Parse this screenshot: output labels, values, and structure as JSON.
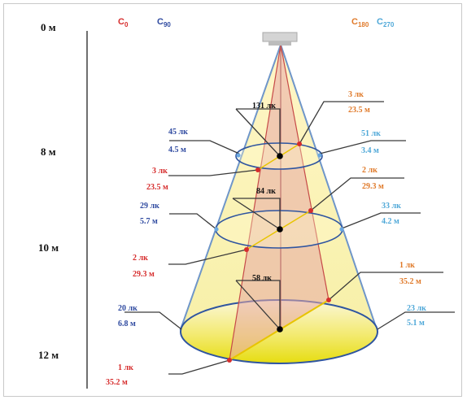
{
  "depths": [
    "0 м",
    "8 м",
    "10 м",
    "12 м"
  ],
  "planes": {
    "c0": {
      "letter": "C",
      "angle": "0",
      "color": "#d62d2d"
    },
    "c90": {
      "letter": "C",
      "angle": "90",
      "color": "#2f4aa0"
    },
    "c180": {
      "letter": "C",
      "angle": "180",
      "color": "#e07a2a"
    },
    "c270": {
      "letter": "C",
      "angle": "270",
      "color": "#4fa8d8"
    }
  },
  "center": [
    "131 лк",
    "84 лк",
    "58 лк"
  ],
  "c0": [
    {
      "lux": "3 лк",
      "dist": "23.5 м"
    },
    {
      "lux": "2 лк",
      "dist": "29.3 м"
    },
    {
      "lux": "1 лк",
      "dist": "35.2 м"
    }
  ],
  "c90": [
    {
      "lux": "45 лк",
      "dist": "4.5 м"
    },
    {
      "lux": "29 лк",
      "dist": "5.7 м"
    },
    {
      "lux": "20 лк",
      "dist": "6.8 м"
    }
  ],
  "c180": [
    {
      "lux": "3 лк",
      "dist": "23.5 м"
    },
    {
      "lux": "2 лк",
      "dist": "29.3 м"
    },
    {
      "lux": "1 лк",
      "dist": "35.2 м"
    }
  ],
  "c270": [
    {
      "lux": "51 лк",
      "dist": "3.4 м"
    },
    {
      "lux": "33 лк",
      "dist": "4.2 м"
    },
    {
      "lux": "23 лк",
      "dist": "5.1 м"
    }
  ],
  "colors": {
    "cone_outline": "#6f96c9",
    "ellipse": "#2f55a0",
    "plane_fill": "#e8a8a6",
    "floor_yellow": "#e6dd10"
  }
}
